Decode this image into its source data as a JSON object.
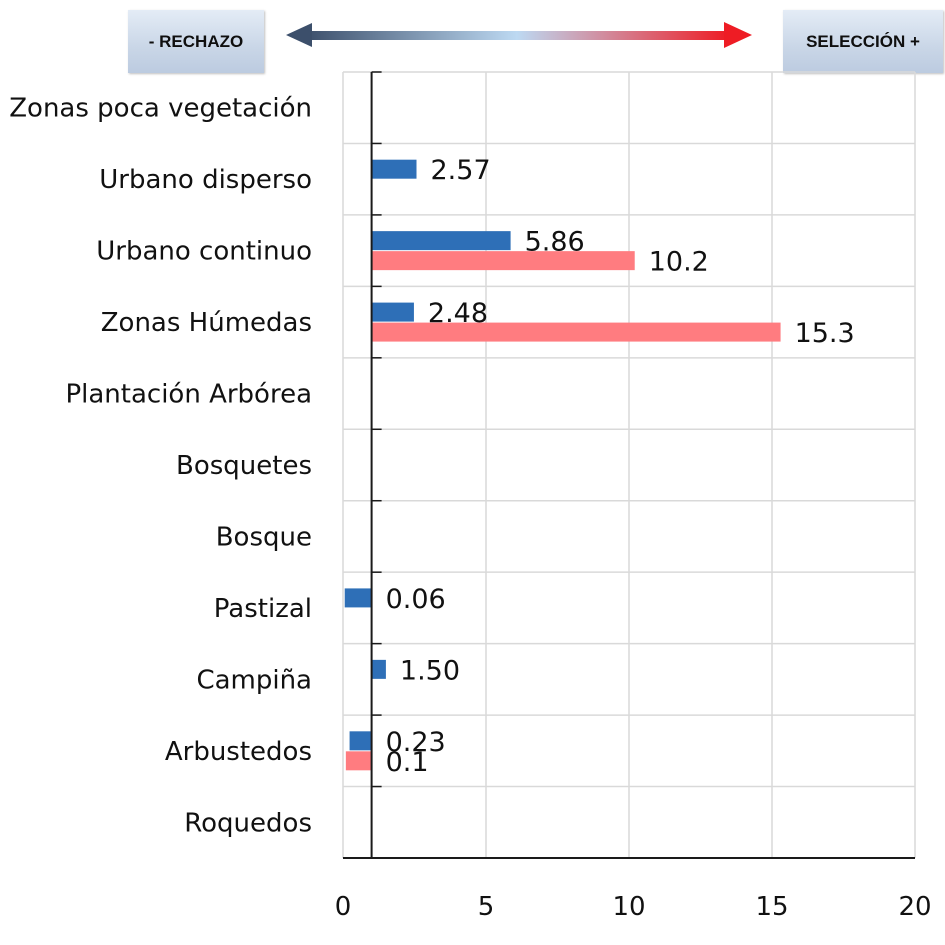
{
  "header": {
    "left_label": "- RECHAZO",
    "right_label": "SELECCIÓN +"
  },
  "chart_data": {
    "type": "bar",
    "orientation": "horizontal",
    "categories": [
      "Zonas poca vegetación",
      "Urbano disperso",
      "Urbano continuo",
      "Zonas Húmedas",
      "Plantación Arbórea",
      "Bosquetes",
      "Bosque",
      "Pastizal",
      "Campiña",
      "Arbustedos",
      "Roquedos"
    ],
    "xlim": [
      0,
      20
    ],
    "xticks": [
      0,
      5,
      10,
      15,
      20
    ],
    "axis_origin": 1,
    "grid": true,
    "series": [
      {
        "color": "#2e6fb7",
        "values": [
          null,
          2.57,
          5.86,
          2.48,
          null,
          null,
          null,
          0.06,
          1.5,
          0.23,
          null
        ],
        "labels": [
          "",
          "2.57",
          "5.86",
          "2.48",
          "",
          "",
          "",
          "0.06",
          "1.50",
          "0.23",
          ""
        ]
      },
      {
        "color": "#ff7c80",
        "values": [
          null,
          null,
          10.2,
          15.3,
          null,
          null,
          null,
          null,
          null,
          0.1,
          null
        ],
        "labels": [
          "",
          "",
          "10.2",
          "15.3",
          "",
          "",
          "",
          "",
          "",
          "0.1",
          ""
        ]
      }
    ],
    "arrow_colors": [
      "#3c4f6b",
      "#bdd9f2",
      "#ee1c24"
    ]
  }
}
